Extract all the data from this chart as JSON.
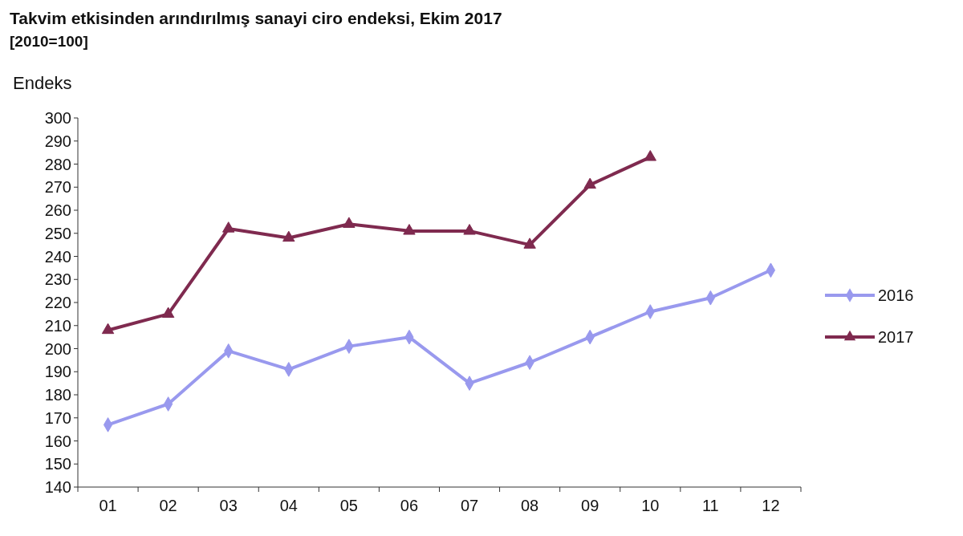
{
  "chart_data": {
    "type": "line",
    "title": "Takvim etkisinden arındırılmış sanayi ciro endeksi,  Ekim 2017",
    "subtitle": "[2010=100]",
    "ylabel": "Endeks",
    "categories": [
      "01",
      "02",
      "03",
      "04",
      "05",
      "06",
      "07",
      "08",
      "09",
      "10",
      "11",
      "12"
    ],
    "series": [
      {
        "name": "2016",
        "color": "#9999ee",
        "marker": "diamond",
        "values": [
          167,
          176,
          199,
          191,
          201,
          205,
          185,
          194,
          205,
          216,
          222,
          234
        ]
      },
      {
        "name": "2017",
        "color": "#7f2a4f",
        "marker": "triangle",
        "values": [
          208,
          215,
          252,
          248,
          254,
          251,
          251,
          245,
          271,
          283,
          null,
          null
        ]
      }
    ],
    "ylim": [
      140,
      300
    ],
    "yticks": [
      140,
      150,
      160,
      170,
      180,
      190,
      200,
      210,
      220,
      230,
      240,
      250,
      260,
      270,
      280,
      290,
      300
    ],
    "grid": false,
    "legend": "right",
    "line_style": "solid"
  }
}
